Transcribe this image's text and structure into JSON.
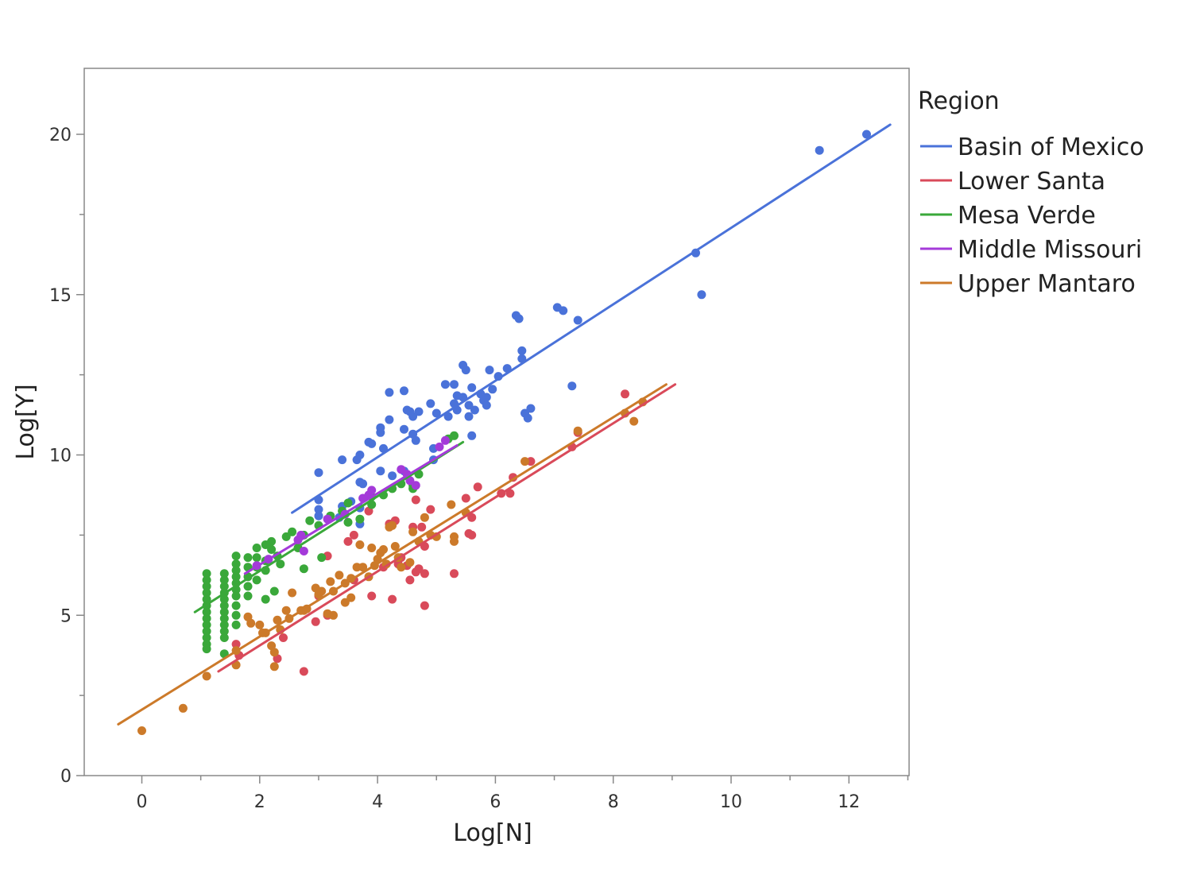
{
  "chart_data": {
    "type": "scatter",
    "title": "",
    "xlabel": "Log[N]",
    "ylabel": "Log[Y]",
    "xlim": [
      -1,
      13
    ],
    "ylim": [
      0,
      22
    ],
    "xticks": [
      0,
      2,
      4,
      6,
      8,
      10,
      12
    ],
    "yticks": [
      0,
      5,
      10,
      15,
      20
    ],
    "legend": {
      "title": "Region",
      "position": "right"
    },
    "series": [
      {
        "name": "Basin of Mexico",
        "color": "#4a72d9",
        "fit": {
          "x": [
            2.55,
            12.7
          ],
          "y": [
            8.2,
            20.3
          ]
        },
        "points": [
          [
            12.3,
            20.0
          ],
          [
            11.5,
            19.5
          ],
          [
            9.4,
            16.3
          ],
          [
            9.5,
            15.0
          ],
          [
            7.05,
            14.6
          ],
          [
            7.15,
            14.5
          ],
          [
            7.4,
            14.2
          ],
          [
            6.35,
            14.35
          ],
          [
            6.4,
            14.25
          ],
          [
            6.45,
            13.25
          ],
          [
            6.45,
            13.0
          ],
          [
            5.45,
            12.8
          ],
          [
            5.5,
            12.65
          ],
          [
            5.9,
            12.65
          ],
          [
            6.2,
            12.7
          ],
          [
            6.05,
            12.45
          ],
          [
            7.3,
            12.15
          ],
          [
            4.2,
            11.95
          ],
          [
            4.45,
            12.0
          ],
          [
            5.3,
            12.2
          ],
          [
            5.15,
            12.2
          ],
          [
            5.35,
            11.85
          ],
          [
            5.6,
            12.1
          ],
          [
            5.75,
            11.9
          ],
          [
            5.85,
            11.8
          ],
          [
            5.95,
            12.05
          ],
          [
            5.3,
            11.6
          ],
          [
            5.45,
            11.8
          ],
          [
            5.55,
            11.55
          ],
          [
            5.65,
            11.4
          ],
          [
            5.8,
            11.7
          ],
          [
            5.85,
            11.55
          ],
          [
            4.9,
            11.6
          ],
          [
            5.0,
            11.3
          ],
          [
            5.2,
            11.2
          ],
          [
            5.35,
            11.4
          ],
          [
            5.55,
            11.2
          ],
          [
            4.5,
            11.4
          ],
          [
            4.55,
            11.35
          ],
          [
            4.7,
            11.35
          ],
          [
            4.6,
            11.2
          ],
          [
            6.5,
            11.3
          ],
          [
            6.6,
            11.45
          ],
          [
            6.55,
            11.15
          ],
          [
            4.2,
            11.1
          ],
          [
            4.05,
            10.85
          ],
          [
            4.05,
            10.7
          ],
          [
            4.45,
            10.8
          ],
          [
            4.6,
            10.65
          ],
          [
            4.65,
            10.45
          ],
          [
            3.85,
            10.4
          ],
          [
            3.9,
            10.35
          ],
          [
            4.1,
            10.2
          ],
          [
            5.6,
            10.6
          ],
          [
            3.7,
            10.0
          ],
          [
            3.65,
            9.85
          ],
          [
            3.4,
            9.85
          ],
          [
            4.05,
            9.5
          ],
          [
            4.25,
            9.35
          ],
          [
            4.45,
            9.5
          ],
          [
            3.0,
            9.45
          ],
          [
            3.7,
            9.15
          ],
          [
            3.75,
            9.1
          ],
          [
            4.95,
            9.85
          ],
          [
            4.95,
            10.2
          ],
          [
            3.0,
            8.6
          ],
          [
            3.0,
            8.3
          ],
          [
            3.0,
            8.1
          ],
          [
            3.4,
            8.4
          ],
          [
            3.55,
            8.55
          ],
          [
            3.7,
            8.35
          ],
          [
            3.35,
            8.05
          ],
          [
            3.7,
            7.85
          ]
        ]
      },
      {
        "name": "Lower Santa",
        "color": "#d94a5a",
        "fit": {
          "x": [
            1.3,
            9.05
          ],
          "y": [
            3.25,
            12.2
          ]
        },
        "points": [
          [
            8.2,
            11.9
          ],
          [
            7.4,
            10.7
          ],
          [
            7.3,
            10.25
          ],
          [
            6.6,
            9.8
          ],
          [
            6.3,
            9.3
          ],
          [
            6.1,
            8.8
          ],
          [
            6.25,
            8.8
          ],
          [
            5.7,
            9.0
          ],
          [
            5.5,
            8.65
          ],
          [
            5.6,
            8.05
          ],
          [
            5.55,
            7.55
          ],
          [
            5.6,
            7.5
          ],
          [
            4.9,
            8.3
          ],
          [
            4.65,
            8.6
          ],
          [
            4.6,
            7.75
          ],
          [
            4.75,
            7.75
          ],
          [
            4.8,
            7.15
          ],
          [
            4.3,
            7.95
          ],
          [
            4.2,
            7.85
          ],
          [
            3.85,
            8.25
          ],
          [
            3.6,
            7.5
          ],
          [
            3.5,
            7.3
          ],
          [
            3.15,
            6.85
          ],
          [
            4.4,
            6.8
          ],
          [
            4.5,
            6.55
          ],
          [
            4.35,
            6.6
          ],
          [
            4.65,
            6.35
          ],
          [
            4.55,
            6.1
          ],
          [
            4.7,
            6.45
          ],
          [
            4.8,
            6.3
          ],
          [
            5.3,
            6.3
          ],
          [
            4.1,
            6.5
          ],
          [
            3.9,
            5.6
          ],
          [
            4.25,
            5.5
          ],
          [
            4.8,
            5.3
          ],
          [
            3.6,
            6.1
          ],
          [
            3.0,
            5.6
          ],
          [
            3.15,
            5.0
          ],
          [
            2.95,
            4.8
          ],
          [
            2.4,
            4.3
          ],
          [
            2.3,
            3.65
          ],
          [
            2.75,
            3.25
          ],
          [
            1.6,
            4.1
          ],
          [
            1.65,
            3.75
          ]
        ]
      },
      {
        "name": "Mesa Verde",
        "color": "#3aa83a",
        "fit": {
          "x": [
            0.9,
            5.45
          ],
          "y": [
            5.1,
            10.4
          ]
        },
        "points": [
          [
            1.1,
            6.3
          ],
          [
            1.1,
            6.1
          ],
          [
            1.1,
            5.9
          ],
          [
            1.1,
            5.7
          ],
          [
            1.1,
            5.5
          ],
          [
            1.1,
            5.3
          ],
          [
            1.1,
            5.1
          ],
          [
            1.1,
            4.9
          ],
          [
            1.1,
            4.7
          ],
          [
            1.1,
            4.5
          ],
          [
            1.1,
            4.3
          ],
          [
            1.1,
            4.1
          ],
          [
            1.1,
            3.95
          ],
          [
            1.4,
            6.3
          ],
          [
            1.4,
            6.1
          ],
          [
            1.4,
            5.9
          ],
          [
            1.4,
            5.7
          ],
          [
            1.4,
            5.5
          ],
          [
            1.4,
            5.3
          ],
          [
            1.4,
            5.1
          ],
          [
            1.4,
            4.9
          ],
          [
            1.4,
            4.7
          ],
          [
            1.4,
            4.5
          ],
          [
            1.4,
            4.3
          ],
          [
            1.4,
            3.8
          ],
          [
            1.6,
            6.85
          ],
          [
            1.6,
            6.6
          ],
          [
            1.6,
            6.4
          ],
          [
            1.6,
            6.2
          ],
          [
            1.6,
            6.0
          ],
          [
            1.6,
            5.8
          ],
          [
            1.6,
            5.6
          ],
          [
            1.6,
            5.3
          ],
          [
            1.6,
            5.0
          ],
          [
            1.6,
            4.7
          ],
          [
            1.8,
            6.8
          ],
          [
            1.8,
            6.5
          ],
          [
            1.8,
            6.2
          ],
          [
            1.8,
            5.9
          ],
          [
            1.8,
            5.6
          ],
          [
            1.95,
            7.1
          ],
          [
            1.95,
            6.8
          ],
          [
            1.95,
            6.5
          ],
          [
            1.95,
            6.1
          ],
          [
            2.1,
            7.2
          ],
          [
            2.1,
            6.7
          ],
          [
            2.1,
            6.4
          ],
          [
            2.1,
            5.5
          ],
          [
            2.2,
            7.3
          ],
          [
            2.2,
            7.05
          ],
          [
            2.25,
            5.75
          ],
          [
            2.3,
            6.85
          ],
          [
            2.35,
            6.6
          ],
          [
            2.45,
            7.45
          ],
          [
            2.55,
            7.6
          ],
          [
            2.65,
            7.1
          ],
          [
            2.75,
            7.5
          ],
          [
            2.75,
            6.45
          ],
          [
            2.85,
            7.95
          ],
          [
            3.0,
            7.8
          ],
          [
            3.05,
            6.8
          ],
          [
            3.2,
            8.1
          ],
          [
            3.4,
            8.25
          ],
          [
            3.5,
            8.5
          ],
          [
            3.5,
            7.9
          ],
          [
            3.7,
            8.0
          ],
          [
            3.9,
            8.7
          ],
          [
            3.9,
            8.45
          ],
          [
            4.1,
            8.75
          ],
          [
            4.25,
            8.95
          ],
          [
            4.4,
            9.1
          ],
          [
            4.6,
            9.05
          ],
          [
            4.6,
            8.95
          ],
          [
            4.7,
            9.4
          ],
          [
            5.2,
            10.5
          ],
          [
            5.3,
            10.6
          ]
        ]
      },
      {
        "name": "Middle Missouri",
        "color": "#a43ad9",
        "fit": {
          "x": [
            1.75,
            5.35
          ],
          "y": [
            6.3,
            10.3
          ]
        },
        "points": [
          [
            1.95,
            6.55
          ],
          [
            2.15,
            6.75
          ],
          [
            2.65,
            7.35
          ],
          [
            2.7,
            7.5
          ],
          [
            2.75,
            7.0
          ],
          [
            3.15,
            8.0
          ],
          [
            3.45,
            8.15
          ],
          [
            3.85,
            8.75
          ],
          [
            3.75,
            8.65
          ],
          [
            3.9,
            8.9
          ],
          [
            4.4,
            9.55
          ],
          [
            4.5,
            9.4
          ],
          [
            4.55,
            9.2
          ],
          [
            4.65,
            9.05
          ],
          [
            5.15,
            10.45
          ],
          [
            5.05,
            10.25
          ]
        ]
      },
      {
        "name": "Upper Mantaro",
        "color": "#cc7a2a",
        "fit": {
          "x": [
            -0.4,
            8.9
          ],
          "y": [
            1.6,
            12.2
          ]
        },
        "points": [
          [
            0.0,
            1.4
          ],
          [
            0.7,
            2.1
          ],
          [
            1.1,
            3.1
          ],
          [
            1.6,
            3.45
          ],
          [
            1.6,
            3.9
          ],
          [
            1.8,
            4.95
          ],
          [
            1.85,
            4.75
          ],
          [
            2.0,
            4.7
          ],
          [
            2.05,
            4.45
          ],
          [
            2.1,
            4.45
          ],
          [
            2.2,
            4.05
          ],
          [
            2.25,
            3.85
          ],
          [
            2.25,
            3.4
          ],
          [
            2.3,
            4.85
          ],
          [
            2.35,
            4.55
          ],
          [
            2.45,
            5.15
          ],
          [
            2.5,
            4.9
          ],
          [
            2.55,
            5.7
          ],
          [
            2.7,
            5.15
          ],
          [
            2.75,
            5.15
          ],
          [
            2.8,
            5.2
          ],
          [
            2.95,
            5.85
          ],
          [
            3.0,
            5.65
          ],
          [
            3.05,
            5.75
          ],
          [
            3.15,
            5.05
          ],
          [
            3.25,
            5.0
          ],
          [
            3.2,
            6.05
          ],
          [
            3.25,
            5.75
          ],
          [
            3.35,
            6.25
          ],
          [
            3.45,
            6.0
          ],
          [
            3.45,
            5.4
          ],
          [
            3.55,
            5.55
          ],
          [
            3.55,
            6.15
          ],
          [
            3.65,
            6.5
          ],
          [
            3.7,
            7.2
          ],
          [
            3.75,
            6.5
          ],
          [
            3.85,
            6.2
          ],
          [
            3.9,
            7.1
          ],
          [
            3.95,
            6.55
          ],
          [
            4.0,
            6.75
          ],
          [
            4.05,
            6.95
          ],
          [
            4.1,
            7.05
          ],
          [
            4.15,
            6.6
          ],
          [
            4.2,
            7.75
          ],
          [
            4.25,
            7.8
          ],
          [
            4.3,
            7.15
          ],
          [
            4.35,
            6.8
          ],
          [
            4.4,
            6.5
          ],
          [
            4.55,
            6.65
          ],
          [
            4.6,
            7.6
          ],
          [
            4.7,
            7.3
          ],
          [
            4.8,
            8.05
          ],
          [
            4.9,
            7.5
          ],
          [
            5.0,
            7.45
          ],
          [
            5.25,
            8.45
          ],
          [
            5.3,
            7.45
          ],
          [
            5.3,
            7.3
          ],
          [
            5.5,
            8.2
          ],
          [
            6.5,
            9.8
          ],
          [
            7.4,
            10.75
          ],
          [
            8.2,
            11.3
          ],
          [
            8.35,
            11.05
          ],
          [
            8.5,
            11.65
          ]
        ]
      }
    ]
  }
}
